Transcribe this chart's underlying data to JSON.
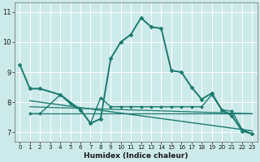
{
  "xlabel": "Humidex (Indice chaleur)",
  "xlim": [
    -0.5,
    23.5
  ],
  "ylim": [
    6.7,
    11.3
  ],
  "yticks": [
    7,
    8,
    9,
    10,
    11
  ],
  "xticks": [
    0,
    1,
    2,
    3,
    4,
    5,
    6,
    7,
    8,
    9,
    10,
    11,
    12,
    13,
    14,
    15,
    16,
    17,
    18,
    19,
    20,
    21,
    22,
    23
  ],
  "bg_color": "#cdeaea",
  "grid_color": "#ffffff",
  "line_color": "#1a7a6e",
  "lines": [
    {
      "x": [
        0,
        1,
        2,
        4,
        6,
        7,
        8,
        9,
        10,
        11,
        12,
        13,
        14,
        15,
        16,
        17,
        18,
        19,
        20,
        21,
        22,
        23
      ],
      "y": [
        9.25,
        8.45,
        8.45,
        8.25,
        7.75,
        7.3,
        7.45,
        9.45,
        10.0,
        10.25,
        10.8,
        10.5,
        10.45,
        9.05,
        9.0,
        8.5,
        8.1,
        8.3,
        7.75,
        7.55,
        7.05,
        6.95
      ],
      "marker": "D",
      "markersize": 2.5,
      "linewidth": 1.4
    },
    {
      "x": [
        1,
        2,
        4,
        5,
        6,
        7,
        8,
        9,
        10,
        11,
        12,
        13,
        14,
        15,
        16,
        17,
        18,
        19,
        20,
        21,
        22,
        23
      ],
      "y": [
        7.62,
        7.62,
        8.25,
        7.95,
        7.75,
        7.3,
        8.15,
        7.85,
        7.85,
        7.85,
        7.85,
        7.85,
        7.85,
        7.85,
        7.85,
        7.85,
        7.85,
        8.25,
        7.75,
        7.7,
        7.1,
        6.95
      ],
      "marker": "D",
      "markersize": 2.0,
      "linewidth": 1.0
    },
    {
      "x": [
        1,
        23
      ],
      "y": [
        8.05,
        7.05
      ],
      "marker": null,
      "markersize": 0,
      "linewidth": 1.0
    },
    {
      "x": [
        1,
        23
      ],
      "y": [
        7.62,
        7.62
      ],
      "marker": null,
      "markersize": 0,
      "linewidth": 0.9
    },
    {
      "x": [
        1,
        23
      ],
      "y": [
        7.85,
        7.62
      ],
      "marker": null,
      "markersize": 0,
      "linewidth": 0.9
    }
  ]
}
